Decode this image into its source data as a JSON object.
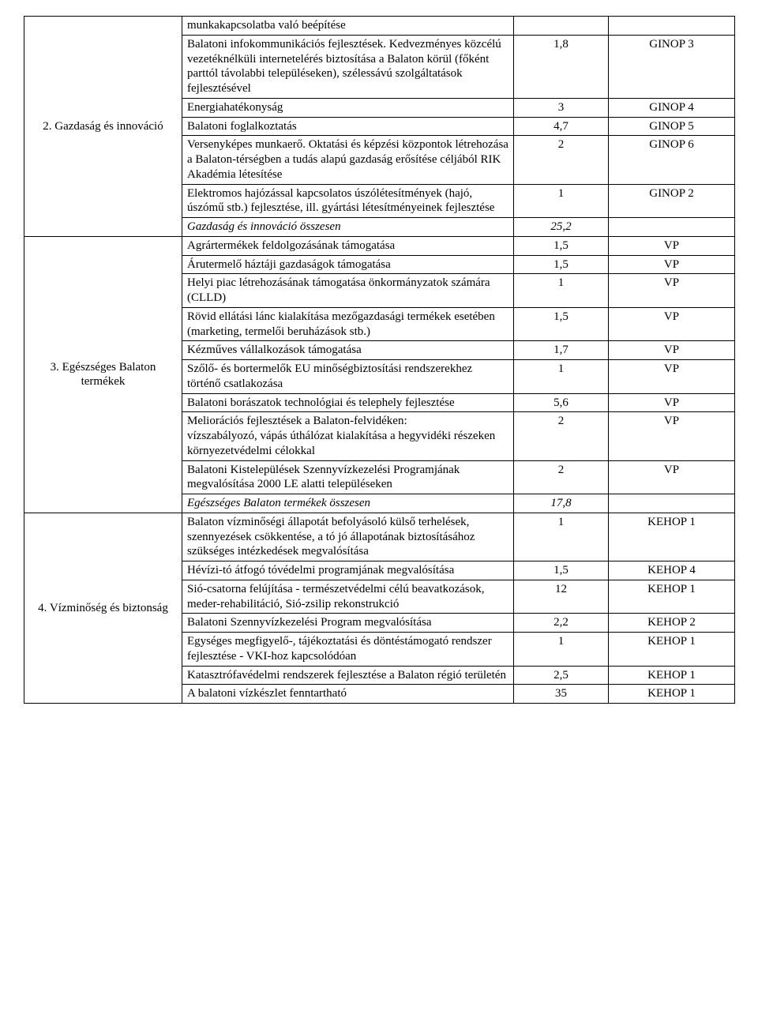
{
  "sections": [
    {
      "label": "2. Gazdaság és innováció",
      "rows": [
        {
          "text": "munkakapcsolatba való beépítése",
          "val": "",
          "prog": ""
        },
        {
          "text": " Balatoni infokommunikációs fejlesztések. Kedvezményes közcélú vezetéknélküli internetelérés biztosítása a Balaton körül (főként parttól távolabbi településeken), szélessávú szolgáltatások fejlesztésével",
          "val": "1,8",
          "prog": "GINOP 3"
        },
        {
          "text": " Energiahatékonyság",
          "val": "3",
          "prog": "GINOP 4"
        },
        {
          "text": " Balatoni foglalkoztatás",
          "val": "4,7",
          "prog": "GINOP 5"
        },
        {
          "text": " Versenyképes munkaerő. Oktatási és képzési központok létrehozása a Balaton-térségben a tudás alapú gazdaság erősítése céljából RIK Akadémia létesítése",
          "val": "2",
          "prog": "GINOP 6"
        },
        {
          "text": " Elektromos hajózással kapcsolatos úszólétesítmények (hajó, úszómű stb.) fejlesztése, ill. gyártási létesítményeinek fejlesztése",
          "val": "1",
          "prog": "GINOP 2"
        },
        {
          "text": "Gazdaság és innováció összesen",
          "val": "25,2",
          "prog": "",
          "italic": true
        }
      ]
    },
    {
      "label": "3. Egészséges Balaton termékek",
      "rows": [
        {
          "text": " Agrártermékek feldolgozásának támogatása",
          "val": "1,5",
          "prog": "VP"
        },
        {
          "text": " Árutermelő háztáji gazdaságok támogatása",
          "val": "1,5",
          "prog": "VP"
        },
        {
          "text": " Helyi piac létrehozásának támogatása önkormányzatok számára (CLLD)",
          "val": "1",
          "prog": "VP"
        },
        {
          "text": " Rövid ellátási lánc kialakítása mezőgazdasági termékek esetében (marketing, termelői beruházások stb.)",
          "val": "1,5",
          "prog": "VP"
        },
        {
          "text": " Kézműves vállalkozások támogatása",
          "val": "1,7",
          "prog": "VP"
        },
        {
          "text": " Szőlő- és bortermelők EU minőségbiztosítási rendszerekhez történő csatlakozása",
          "val": "1",
          "prog": "VP"
        },
        {
          "text": " Balatoni borászatok technológiai és telephely fejlesztése",
          "val": "5,6",
          "prog": "VP"
        },
        {
          "text": " Meliorációs fejlesztések a Balaton-felvidéken:\nvízszabályozó, vápás úthálózat kialakítása a hegyvidéki részeken környezetvédelmi célokkal",
          "val": "2",
          "prog": "VP"
        },
        {
          "text": " Balatoni Kistelepülések Szennyvízkezelési Programjának megvalósítása 2000 LE alatti településeken",
          "val": "2",
          "prog": "VP"
        },
        {
          "text": "Egészséges Balaton termékek összesen",
          "val": "17,8",
          "prog": "",
          "italic": true
        }
      ]
    },
    {
      "label": "4. Vízminőség és biztonság",
      "rows": [
        {
          "text": " Balaton vízminőségi állapotát befolyásoló külső terhelések, szennyezések csökkentése, a tó jó állapotának biztosításához szükséges intézkedések megvalósítása",
          "val": "1",
          "prog": "KEHOP 1"
        },
        {
          "text": " Hévízi-tó átfogó tóvédelmi programjának megvalósítása",
          "val": "1,5",
          "prog": "KEHOP 4"
        },
        {
          "text": " Sió-csatorna felújítása - természetvédelmi célú beavatkozások, meder-rehabilitáció, Sió-zsilip rekonstrukció",
          "val": "12",
          "prog": "KEHOP 1"
        },
        {
          "text": " Balatoni Szennyvízkezelési Program megvalósítása",
          "val": "2,2",
          "prog": "KEHOP 2"
        },
        {
          "text": " Egységes megfigyelő-, tájékoztatási és döntéstámogató rendszer fejlesztése - VKI-hoz kapcsolódóan",
          "val": "1",
          "prog": "KEHOP 1"
        },
        {
          "text": " Katasztrófavédelmi rendszerek fejlesztése a Balaton régió területén",
          "val": "2,5",
          "prog": "KEHOP 1"
        },
        {
          "text": " A balatoni vízkészlet fenntartható",
          "val": "35",
          "prog": "KEHOP 1"
        }
      ]
    }
  ]
}
